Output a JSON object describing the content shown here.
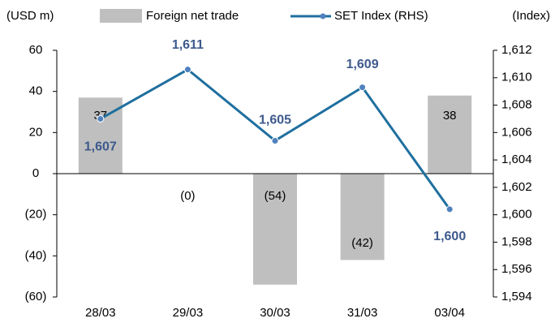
{
  "chart_data": {
    "type": "bar-line",
    "y_label": "(USD m)",
    "y2_label": "(Index)",
    "categories": [
      "28/03",
      "29/03",
      "30/03",
      "31/03",
      "03/04"
    ],
    "series": [
      {
        "name": "Foreign net trade",
        "type": "bar",
        "color": "#bfbfbf",
        "values": [
          37,
          0,
          -54,
          -42,
          38
        ],
        "value_labels": [
          "37",
          "(0)",
          "(54)",
          "(42)",
          "38"
        ]
      },
      {
        "name": "SET Index (RHS)",
        "type": "line",
        "axis": "y2",
        "color": "#1f6f9f",
        "marker_color": "#4f81bd",
        "values": [
          1607,
          1610.6,
          1605.4,
          1609.3,
          1600.4
        ],
        "value_labels": [
          "1,607",
          "1,611",
          "1,605",
          "1,609",
          "1,600"
        ]
      }
    ],
    "ylim": [
      -60,
      60
    ],
    "yticks": [
      {
        "value": -60,
        "label": "(60)"
      },
      {
        "value": -40,
        "label": "(40)"
      },
      {
        "value": -20,
        "label": "(20)"
      },
      0,
      20,
      40,
      60
    ],
    "y2lim": [
      1594,
      1612
    ],
    "y2ticks": [
      {
        "value": 1594,
        "label": "1,594"
      },
      {
        "value": 1596,
        "label": "1,596"
      },
      {
        "value": 1598,
        "label": "1,598"
      },
      {
        "value": 1600,
        "label": "1,600"
      },
      {
        "value": 1602,
        "label": "1,602"
      },
      {
        "value": 1604,
        "label": "1,604"
      },
      {
        "value": 1606,
        "label": "1,606"
      },
      {
        "value": 1608,
        "label": "1,608"
      },
      {
        "value": 1610,
        "label": "1,610"
      },
      {
        "value": 1612,
        "label": "1,612"
      }
    ],
    "grid": false
  }
}
